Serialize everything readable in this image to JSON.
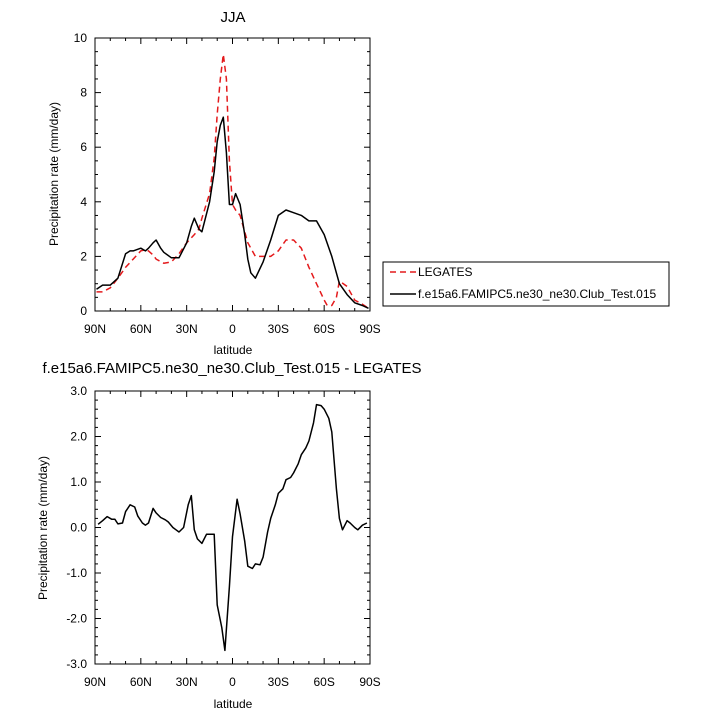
{
  "chart_data": [
    {
      "type": "line",
      "title": "JJA",
      "xlabel": "latitude",
      "ylabel": "Precipitation rate (mm/day)",
      "xlim": [
        90,
        -90
      ],
      "ylim": [
        0,
        10
      ],
      "xticks": [
        90,
        60,
        30,
        0,
        -30,
        -60,
        -90
      ],
      "xticklabels": [
        "90N",
        "60N",
        "30N",
        "0",
        "30S",
        "60S",
        "90S"
      ],
      "yticks": [
        0,
        2,
        4,
        6,
        8,
        10
      ],
      "yticklabels": [
        "0",
        "2",
        "4",
        "6",
        "8",
        "10"
      ],
      "legend_placement": "right",
      "series": [
        {
          "name": "LEGATES",
          "color": "#e41a1c",
          "dash": "dashed",
          "x": [
            89,
            85,
            80,
            75,
            70,
            65,
            60,
            57,
            55,
            52,
            50,
            45,
            40,
            35,
            30,
            25,
            22,
            20,
            15,
            12,
            10,
            8,
            6,
            4,
            2,
            0,
            -2,
            -5,
            -10,
            -15,
            -20,
            -25,
            -30,
            -35,
            -40,
            -45,
            -50,
            -55,
            -60,
            -62,
            -65,
            -68,
            -70,
            -75,
            -80,
            -85,
            -89
          ],
          "y": [
            0.7,
            0.7,
            0.85,
            1.2,
            1.6,
            1.9,
            2.2,
            2.25,
            2.2,
            2.05,
            1.9,
            1.75,
            1.8,
            2.1,
            2.5,
            2.8,
            3.0,
            3.4,
            4.3,
            5.6,
            7.2,
            8.5,
            9.4,
            8.5,
            5.5,
            3.9,
            3.7,
            3.5,
            2.5,
            2.0,
            2.0,
            2.0,
            2.2,
            2.6,
            2.6,
            2.3,
            1.6,
            1.0,
            0.4,
            0.2,
            0.2,
            0.5,
            1.1,
            0.9,
            0.4,
            0.25,
            0.1
          ]
        },
        {
          "name": "f.e15a6.FAMIPC5.ne30_ne30.Club_Test.015",
          "color": "#000000",
          "dash": "solid",
          "x": [
            89,
            85,
            80,
            75,
            70,
            67,
            65,
            60,
            57,
            55,
            52,
            50,
            47,
            45,
            40,
            35,
            30,
            27,
            25,
            22,
            20,
            15,
            12,
            10,
            8,
            6,
            4,
            2,
            0,
            -2,
            -5,
            -8,
            -10,
            -12,
            -15,
            -20,
            -25,
            -30,
            -35,
            -40,
            -45,
            -50,
            -55,
            -60,
            -65,
            -70,
            -75,
            -80,
            -85,
            -89
          ],
          "y": [
            0.8,
            0.95,
            0.95,
            1.2,
            2.1,
            2.2,
            2.2,
            2.3,
            2.2,
            2.3,
            2.5,
            2.6,
            2.3,
            2.15,
            1.95,
            1.95,
            2.5,
            3.1,
            3.4,
            3.0,
            2.9,
            4.0,
            5.1,
            6.2,
            6.8,
            7.1,
            5.8,
            3.9,
            3.9,
            4.3,
            3.9,
            2.8,
            1.9,
            1.4,
            1.2,
            1.8,
            2.6,
            3.5,
            3.7,
            3.6,
            3.5,
            3.3,
            3.3,
            2.8,
            2.0,
            1.0,
            0.6,
            0.3,
            0.2,
            0.1
          ]
        }
      ]
    },
    {
      "type": "line",
      "title": "f.e15a6.FAMIPC5.ne30_ne30.Club_Test.015 - LEGATES",
      "xlabel": "latitude",
      "ylabel": "Precipitation rate (mm/day)",
      "xlim": [
        90,
        -90
      ],
      "ylim": [
        -3.0,
        3.0
      ],
      "xticks": [
        90,
        60,
        30,
        0,
        -30,
        -60,
        -90
      ],
      "xticklabels": [
        "90N",
        "60N",
        "30N",
        "0",
        "30S",
        "60S",
        "90S"
      ],
      "yticks": [
        -3,
        -2,
        -1,
        0,
        1,
        2,
        3
      ],
      "yticklabels": [
        "-3.0",
        "-2.0",
        "-1.0",
        "0.0",
        "1.0",
        "2.0",
        "3.0"
      ],
      "series": [
        {
          "color": "#000000",
          "dash": "solid",
          "x": [
            88,
            85,
            82,
            79,
            77,
            75,
            72,
            70,
            67,
            64,
            62,
            59,
            57,
            55,
            52,
            50,
            47,
            44,
            42,
            39,
            37,
            35,
            32,
            29,
            27,
            25,
            23,
            20,
            17,
            15,
            12,
            10,
            7,
            5,
            2,
            0,
            -3,
            -5,
            -8,
            -10,
            -13,
            -15,
            -18,
            -20,
            -23,
            -25,
            -28,
            -30,
            -33,
            -35,
            -38,
            -40,
            -43,
            -45,
            -48,
            -50,
            -53,
            -55,
            -58,
            -60,
            -63,
            -65,
            -68,
            -70,
            -72,
            -75,
            -77,
            -80,
            -82,
            -85,
            -88
          ],
          "y": [
            0.07,
            0.15,
            0.24,
            0.18,
            0.18,
            0.08,
            0.1,
            0.35,
            0.5,
            0.45,
            0.25,
            0.1,
            0.05,
            0.1,
            0.42,
            0.32,
            0.22,
            0.17,
            0.12,
            0.0,
            -0.05,
            -0.1,
            0.0,
            0.5,
            0.7,
            -0.05,
            -0.25,
            -0.35,
            -0.15,
            -0.15,
            -0.15,
            -1.7,
            -2.2,
            -2.7,
            -1.3,
            -0.2,
            0.62,
            0.3,
            -0.3,
            -0.85,
            -0.9,
            -0.8,
            -0.82,
            -0.65,
            -0.1,
            0.2,
            0.5,
            0.75,
            0.85,
            1.05,
            1.1,
            1.2,
            1.4,
            1.6,
            1.75,
            1.9,
            2.3,
            2.7,
            2.68,
            2.6,
            2.4,
            2.1,
            0.85,
            0.2,
            -0.05,
            0.15,
            0.1,
            0.0,
            -0.05,
            0.05,
            0.1
          ]
        }
      ]
    }
  ]
}
